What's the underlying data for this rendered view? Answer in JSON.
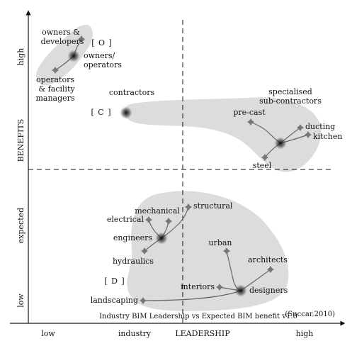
{
  "axes": {
    "y_title": "BENEFITS",
    "y_low": "low",
    "y_mid": "expected",
    "y_high": "high",
    "x_title": "LEADERSHIP",
    "x_low": "low",
    "x_mid": "industry",
    "x_high": "high"
  },
  "caption": "Industry BIM Leadership vs Expected BIM benefit v1.0",
  "citation": "(Succar.2010)",
  "groups": {
    "O": "[ O ]",
    "C": "[ C ]",
    "D": "[ D ]",
    "contractors_title": "contractors",
    "specialised_line1": "specialised",
    "specialised_line2": "sub-contractors"
  },
  "nodes": {
    "owners_developers_line1": "owners &",
    "owners_developers_line2": "developers",
    "owners_operators_line1": "owners/",
    "owners_operators_line2": "operators",
    "operators_fm_line1": "operators",
    "operators_fm_line2": "& facility",
    "operators_fm_line3": "managers",
    "pre_cast": "pre-cast",
    "ducting": "ducting",
    "kitchen": "kitchen",
    "steel": "steel",
    "structural": "structural",
    "mechanical": "mechanical",
    "electrical": "electrical",
    "engineers": "engineers",
    "hydraulics": "hydraulics",
    "urban": "urban",
    "architects": "architects",
    "interiors": "interiors",
    "designers": "designers",
    "landscaping": "landscaping"
  }
}
